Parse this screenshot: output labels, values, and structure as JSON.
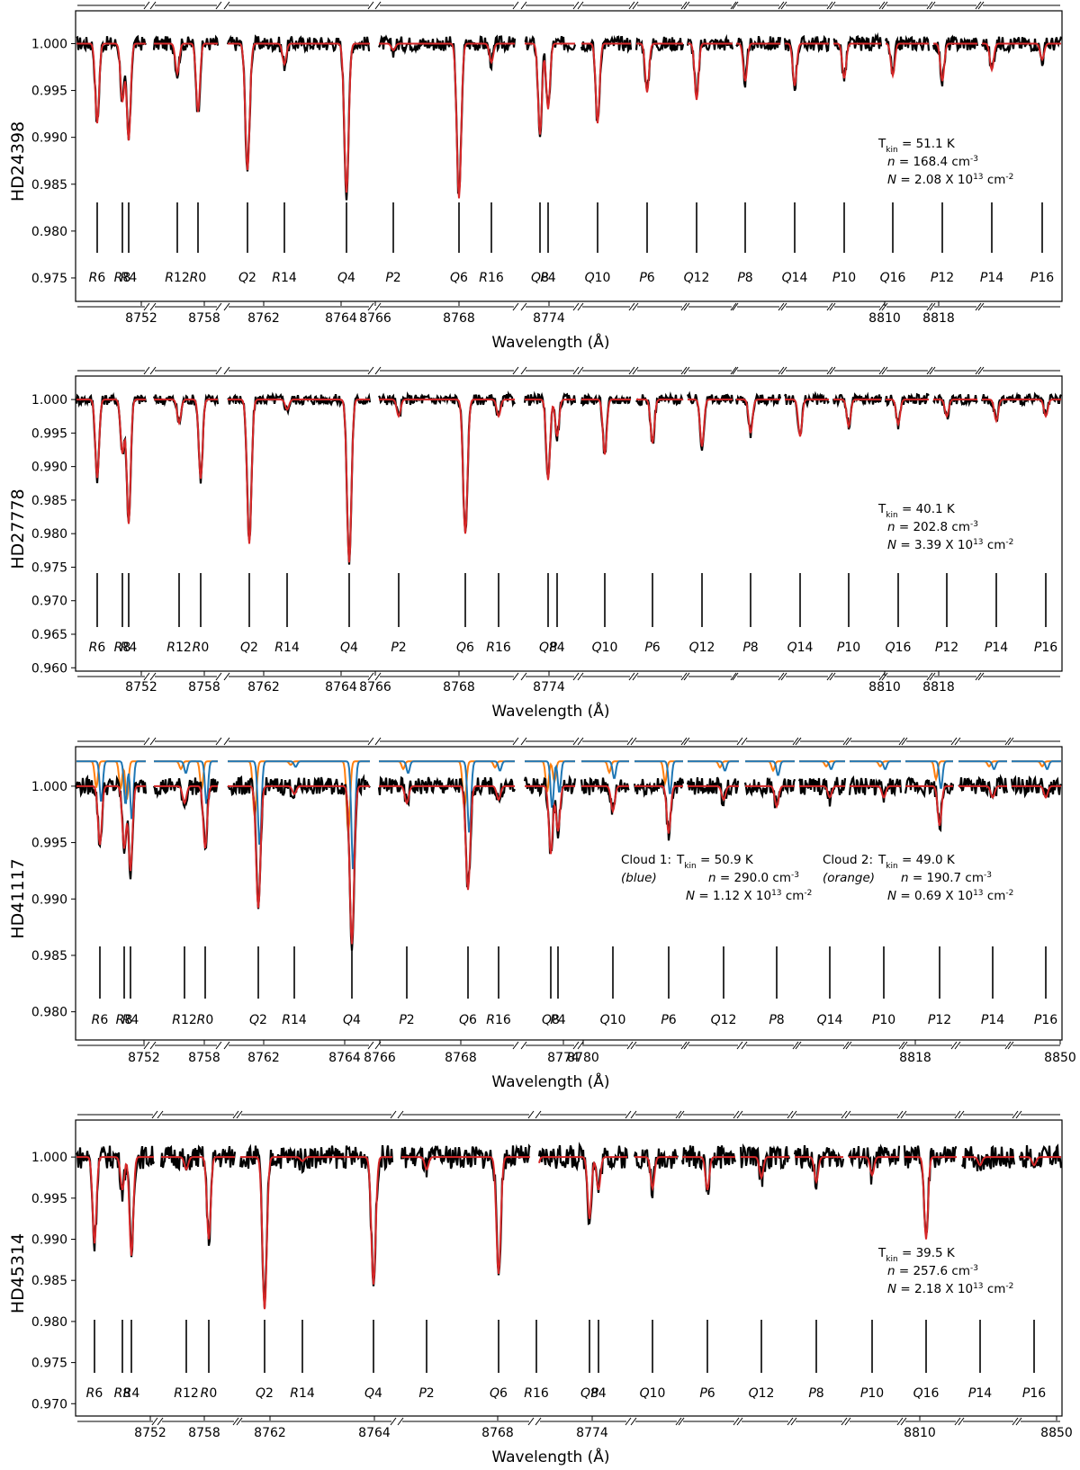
{
  "chart_data": [
    {
      "type": "line",
      "star": "HD24398",
      "xlabel": "Wavelength (Å)",
      "ylabel": "HD24398",
      "ylim": [
        0.9725,
        1.0035
      ],
      "yticks": [
        0.975,
        0.98,
        0.985,
        0.99,
        0.995,
        1.0
      ],
      "yticklabels": [
        "0.975",
        "0.980",
        "0.985",
        "0.990",
        "0.995",
        "1.000"
      ],
      "xticklabels": [
        "8752",
        "8758",
        "8762",
        "8764",
        "8766",
        "8768",
        "8774",
        "8810",
        "8818"
      ],
      "line_labels": [
        "R6",
        "R8",
        "R4",
        "R12",
        "R0",
        "Q2",
        "R14",
        "Q4",
        "P2",
        "Q6",
        "R16",
        "Q8",
        "P4",
        "Q10",
        "P6",
        "Q12",
        "P8",
        "Q14",
        "P10",
        "Q16",
        "P12",
        "P14",
        "P16"
      ],
      "line_depths": [
        0.9915,
        0.9938,
        0.9897,
        0.9968,
        0.9927,
        0.9865,
        0.9978,
        0.9841,
        0.9993,
        0.9835,
        0.998,
        0.9903,
        0.993,
        0.9915,
        0.9948,
        0.994,
        0.996,
        0.9955,
        0.9963,
        0.9966,
        0.996,
        0.9972,
        0.9983
      ],
      "fit_color": "#d62728",
      "observed_color": "#000000",
      "params": [
        [
          "T_kin = 51.1 K",
          "n = 168.4 cm^-3",
          "N = 2.08 X 10^13 cm^-2"
        ]
      ]
    },
    {
      "type": "line",
      "star": "HD27778",
      "xlabel": "Wavelength (Å)",
      "ylabel": "HD27778",
      "ylim": [
        0.9595,
        1.0035
      ],
      "yticks": [
        0.96,
        0.965,
        0.97,
        0.975,
        0.98,
        0.985,
        0.99,
        0.995,
        1.0
      ],
      "yticklabels": [
        "0.960",
        "0.965",
        "0.970",
        "0.975",
        "0.980",
        "0.985",
        "0.990",
        "0.995",
        "1.000"
      ],
      "xticklabels": [
        "8752",
        "8758",
        "8762",
        "8764",
        "8766",
        "8768",
        "8774",
        "8810",
        "8818"
      ],
      "line_labels": [
        "R6",
        "R8",
        "R4",
        "R12",
        "R0",
        "Q2",
        "R14",
        "Q4",
        "P2",
        "Q6",
        "R16",
        "Q8",
        "P4",
        "Q10",
        "P6",
        "Q12",
        "P8",
        "Q14",
        "P10",
        "Q16",
        "P12",
        "P14",
        "P16"
      ],
      "line_depths": [
        0.9883,
        0.992,
        0.9815,
        0.9965,
        0.9882,
        0.9785,
        0.9985,
        0.9757,
        0.9975,
        0.98,
        0.9975,
        0.988,
        0.9945,
        0.9918,
        0.9935,
        0.993,
        0.995,
        0.9945,
        0.996,
        0.9963,
        0.9975,
        0.9968,
        0.9975
      ],
      "fit_color": "#d62728",
      "observed_color": "#000000",
      "params": [
        [
          "T_kin = 40.1 K",
          "n = 202.8 cm^-3",
          "N = 3.39 X 10^13 cm^-2"
        ]
      ]
    },
    {
      "type": "line",
      "star": "HD41117",
      "xlabel": "Wavelength (Å)",
      "ylabel": "HD41117",
      "ylim": [
        0.9775,
        1.0035
      ],
      "yticks": [
        0.98,
        0.985,
        0.99,
        0.995,
        1.0
      ],
      "yticklabels": [
        "0.980",
        "0.985",
        "0.990",
        "0.995",
        "1.000"
      ],
      "xticklabels": [
        "8752",
        "8758",
        "8762",
        "8764",
        "8766",
        "8768",
        "8774",
        "8780",
        "8818",
        "8850"
      ],
      "line_labels": [
        "R6",
        "R8",
        "R4",
        "R12",
        "R0",
        "Q2",
        "R14",
        "Q4",
        "P2",
        "Q6",
        "R16",
        "Q8",
        "P4",
        "Q10",
        "P6",
        "Q12",
        "P8",
        "Q14",
        "P10",
        "P12",
        "P14",
        "P16"
      ],
      "line_depths": [
        0.9948,
        0.9945,
        0.9925,
        0.9985,
        0.9945,
        0.9892,
        0.9993,
        0.986,
        0.9985,
        0.9908,
        0.9988,
        0.994,
        0.996,
        0.9978,
        0.9958,
        0.9988,
        0.9982,
        0.999,
        0.999,
        0.9965,
        0.999,
        0.999
      ],
      "fit_color": "#d62728",
      "observed_color": "#000000",
      "cloud_colors": [
        "#1f77b4",
        "#ff7f0e"
      ],
      "params": [
        [
          "Cloud 1:",
          "(blue)",
          "T_kin = 50.9 K",
          "n = 290.0 cm^-3",
          "N = 1.12 X 10^13 cm^-2"
        ],
        [
          "Cloud 2:",
          "(orange)",
          "T_kin = 49.0 K",
          "n = 190.7 cm^-3",
          "N = 0.69 X 10^13 cm^-2"
        ]
      ]
    },
    {
      "type": "line",
      "star": "HD45314",
      "xlabel": "Wavelength (Å)",
      "ylabel": "HD45314",
      "ylim": [
        0.9685,
        1.0045
      ],
      "yticks": [
        0.97,
        0.975,
        0.98,
        0.985,
        0.99,
        0.995,
        1.0
      ],
      "yticklabels": [
        "0.970",
        "0.975",
        "0.980",
        "0.985",
        "0.990",
        "0.995",
        "1.000"
      ],
      "xticklabels": [
        "8752",
        "8758",
        "8762",
        "8764",
        "8768",
        "8774",
        "8810",
        "8850"
      ],
      "line_labels": [
        "R6",
        "R8",
        "R4",
        "R12",
        "R0",
        "Q2",
        "R14",
        "Q4",
        "P2",
        "Q6",
        "R16",
        "Q8",
        "P4",
        "Q10",
        "P6",
        "Q12",
        "P8",
        "P10",
        "Q16",
        "P14",
        "P16"
      ],
      "line_depths": [
        0.9895,
        0.996,
        0.988,
        0.9985,
        0.99,
        0.9815,
        0.9995,
        0.9845,
        0.9985,
        0.9858,
        0.998,
        0.9925,
        0.996,
        0.9962,
        0.996,
        0.9975,
        0.997,
        0.9978,
        0.99,
        0.999,
        0.999
      ],
      "fit_color": "#d62728",
      "observed_color": "#000000",
      "params": [
        [
          "T_kin = 39.5 K",
          "n = 257.6 cm^-3",
          "N = 2.18 X 10^13 cm^-2"
        ]
      ]
    }
  ]
}
